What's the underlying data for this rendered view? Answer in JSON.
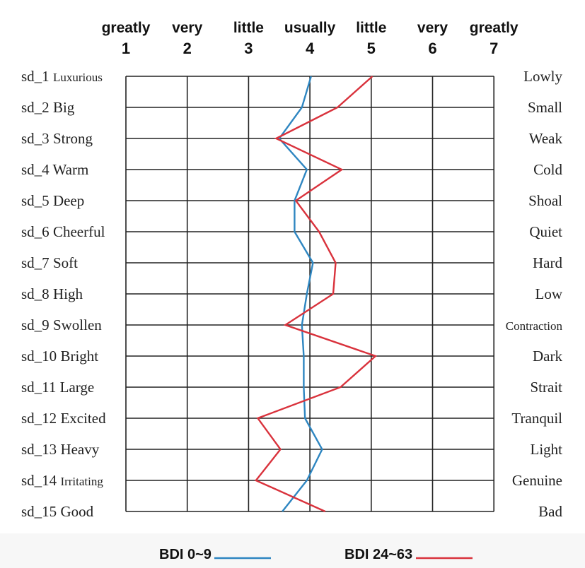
{
  "chart_data": {
    "type": "line",
    "orientation": "vertical-profile",
    "scale_words": [
      "greatly",
      "very",
      "little",
      "usually",
      "little",
      "very",
      "greatly"
    ],
    "scale_numbers": [
      "1",
      "2",
      "3",
      "4",
      "5",
      "6",
      "7"
    ],
    "xlim": [
      1,
      7
    ],
    "grid": true,
    "legend_position": "bottom-center",
    "items": [
      {
        "id": "sd_1",
        "left": "Luxurious",
        "right": "Lowly"
      },
      {
        "id": "sd_2",
        "left": "Big",
        "right": "Small"
      },
      {
        "id": "sd_3",
        "left": "Strong",
        "right": "Weak"
      },
      {
        "id": "sd_4",
        "left": "Warm",
        "right": "Cold"
      },
      {
        "id": "sd_5",
        "left": "Deep",
        "right": "Shoal"
      },
      {
        "id": "sd_6",
        "left": "Cheerful",
        "right": "Quiet"
      },
      {
        "id": "sd_7",
        "left": "Soft",
        "right": "Hard"
      },
      {
        "id": "sd_8",
        "left": "High",
        "right": "Low"
      },
      {
        "id": "sd_9",
        "left": "Swollen",
        "right": "Contraction"
      },
      {
        "id": "sd_10",
        "left": "Bright",
        "right": "Dark"
      },
      {
        "id": "sd_11",
        "left": "Large",
        "right": "Strait"
      },
      {
        "id": "sd_12",
        "left": "Excited",
        "right": "Tranquil"
      },
      {
        "id": "sd_13",
        "left": "Heavy",
        "right": "Light"
      },
      {
        "id": "sd_14",
        "left": "Irritating",
        "right": "Genuine"
      },
      {
        "id": "sd_15",
        "left": "Good",
        "right": "Bad"
      }
    ],
    "series": [
      {
        "name": "BDI 0~9",
        "color": "#2e86c1",
        "values": [
          4.02,
          3.87,
          3.5,
          3.95,
          3.75,
          3.75,
          4.05,
          3.95,
          3.87,
          3.9,
          3.9,
          3.92,
          4.2,
          3.95,
          3.55
        ]
      },
      {
        "name": "BDI 24~63",
        "color": "#d9323c",
        "values": [
          5.02,
          4.45,
          3.45,
          4.52,
          3.77,
          4.15,
          4.42,
          4.38,
          3.6,
          5.07,
          4.5,
          3.15,
          3.52,
          3.12,
          4.25
        ]
      }
    ]
  }
}
